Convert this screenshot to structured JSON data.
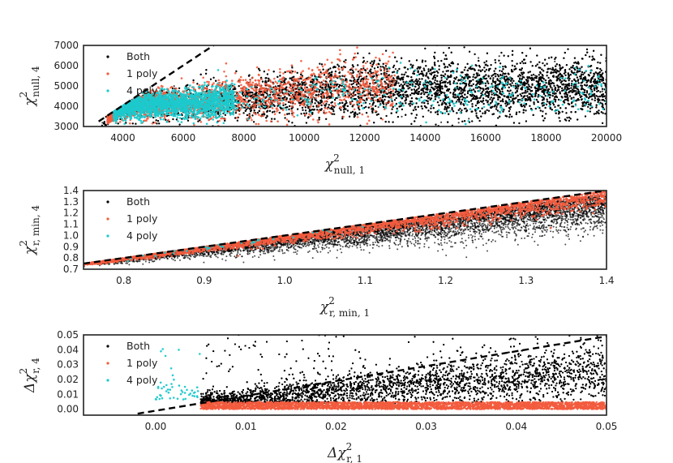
{
  "chart_data": [
    {
      "type": "scatter",
      "panel": "top",
      "xlabel": "χ²null, 1",
      "xlabel_base": "χ",
      "xlabel_sup": "2",
      "xlabel_sub": "null, 1",
      "ylabel": "χ²null, 4",
      "ylabel_base": "χ",
      "ylabel_sup": "2",
      "ylabel_sub": "null, 4",
      "xlim": [
        2700,
        20000
      ],
      "ylim": [
        3000,
        7000
      ],
      "xticks": [
        4000,
        6000,
        8000,
        10000,
        12000,
        14000,
        16000,
        18000,
        20000
      ],
      "xtick_labels": [
        "4000",
        "6000",
        "8000",
        "10000",
        "12000",
        "14000",
        "16000",
        "18000",
        "20000"
      ],
      "yticks": [
        3000,
        4000,
        5000,
        6000,
        7000
      ],
      "ytick_labels": [
        "3000",
        "4000",
        "5000",
        "6000",
        "7000"
      ],
      "reference_line": {
        "style": "dashed",
        "points": [
          [
            3200,
            3250
          ],
          [
            7000,
            7000
          ]
        ]
      },
      "legend": {
        "location": "upper-left",
        "entries": [
          "Both",
          "1 poly",
          "4 poly"
        ]
      },
      "series": [
        {
          "name": "Both",
          "color": "#000000",
          "n_points": 12000,
          "x_range": [
            3300,
            20000
          ],
          "y_center": [
            3900,
            5000
          ],
          "y_spread": [
            300,
            550
          ],
          "note": "dense black cloud across full range"
        },
        {
          "name": "1 poly",
          "color": "#f25c3e",
          "n_points": 2000,
          "x_range": [
            3500,
            13000
          ],
          "y_center": [
            4000,
            5200
          ],
          "y_spread": [
            300,
            700
          ],
          "note": "concentrated near the left below the dashed line"
        },
        {
          "name": "4 poly",
          "color": "#1cc9cc",
          "n_points": 3000,
          "x_range": [
            3600,
            20000
          ],
          "y_center": [
            3900,
            4800
          ],
          "y_spread": [
            250,
            450
          ],
          "note": "dense cluster 4000-7500, sparse beyond"
        }
      ]
    },
    {
      "type": "scatter",
      "panel": "middle",
      "xlabel": "χ²r, min, 1",
      "xlabel_base": "χ",
      "xlabel_sup": "2",
      "xlabel_sub": "r, min, 1",
      "ylabel": "χ²r, min, 4",
      "ylabel_base": "χ",
      "ylabel_sup": "2",
      "ylabel_sub": "r, min, 4",
      "xlim": [
        0.75,
        1.4
      ],
      "ylim": [
        0.7,
        1.4
      ],
      "xticks": [
        0.8,
        0.9,
        1.0,
        1.1,
        1.2,
        1.3,
        1.4
      ],
      "xtick_labels": [
        "0.8",
        "0.9",
        "1.0",
        "1.1",
        "1.2",
        "1.3",
        "1.4"
      ],
      "yticks": [
        0.7,
        0.8,
        0.9,
        1.0,
        1.1,
        1.2,
        1.3,
        1.4
      ],
      "ytick_labels": [
        "0.7",
        "0.8",
        "0.9",
        "1.0",
        "1.1",
        "1.2",
        "1.3",
        "1.4"
      ],
      "reference_line": {
        "style": "dashed",
        "points": [
          [
            0.75,
            0.75
          ],
          [
            1.4,
            1.4
          ]
        ]
      },
      "legend": {
        "location": "upper-left",
        "entries": [
          "Both",
          "1 poly",
          "4 poly"
        ]
      },
      "series": [
        {
          "name": "Both",
          "color": "#000000",
          "n_points": 6000,
          "x_range": [
            0.75,
            1.4
          ],
          "relation": "y <= x, spread grows with x"
        },
        {
          "name": "1 poly",
          "color": "#f25c3e",
          "n_points": 2500,
          "x_range": [
            0.75,
            1.4
          ],
          "relation": "hugging y = x from below"
        },
        {
          "name": "4 poly",
          "color": "#1cc9cc",
          "n_points": 40,
          "x_range": [
            0.8,
            1.1
          ],
          "relation": "sparse near y = x"
        }
      ]
    },
    {
      "type": "scatter",
      "panel": "bottom",
      "xlabel": "Δχ²r, 1",
      "xlabel_base": "Δχ",
      "xlabel_sup": "2",
      "xlabel_sub": "r, 1",
      "ylabel": "Δχ²r, 4",
      "ylabel_base": "Δχ",
      "ylabel_sup": "2",
      "ylabel_sub": "r, 4",
      "xlim": [
        -0.008,
        0.05
      ],
      "ylim": [
        -0.004,
        0.05
      ],
      "xticks": [
        0.0,
        0.01,
        0.02,
        0.03,
        0.04,
        0.05
      ],
      "xtick_labels": [
        "0.00",
        "0.01",
        "0.02",
        "0.03",
        "0.04",
        "0.05"
      ],
      "yticks": [
        0.0,
        0.01,
        0.02,
        0.03,
        0.04,
        0.05
      ],
      "ytick_labels": [
        "0.00",
        "0.01",
        "0.02",
        "0.03",
        "0.04",
        "0.05"
      ],
      "reference_line": {
        "style": "dashed",
        "points": [
          [
            -0.002,
            -0.003
          ],
          [
            0.05,
            0.049
          ]
        ]
      },
      "legend": {
        "location": "upper-left",
        "entries": [
          "Both",
          "1 poly",
          "4 poly"
        ]
      },
      "series": [
        {
          "name": "Both",
          "color": "#000000",
          "n_points": 14000,
          "x_range": [
            0.005,
            0.05
          ],
          "relation": "y rises roughly 0.5x, broad spread"
        },
        {
          "name": "1 poly",
          "color": "#f25c3e",
          "n_points": 3500,
          "x_range": [
            0.005,
            0.05
          ],
          "y_range": [
            0.0,
            0.005
          ]
        },
        {
          "name": "4 poly",
          "color": "#1cc9cc",
          "n_points": 50,
          "x_range": [
            0.0,
            0.005
          ],
          "y_range": [
            0.005,
            0.04
          ]
        }
      ]
    }
  ]
}
